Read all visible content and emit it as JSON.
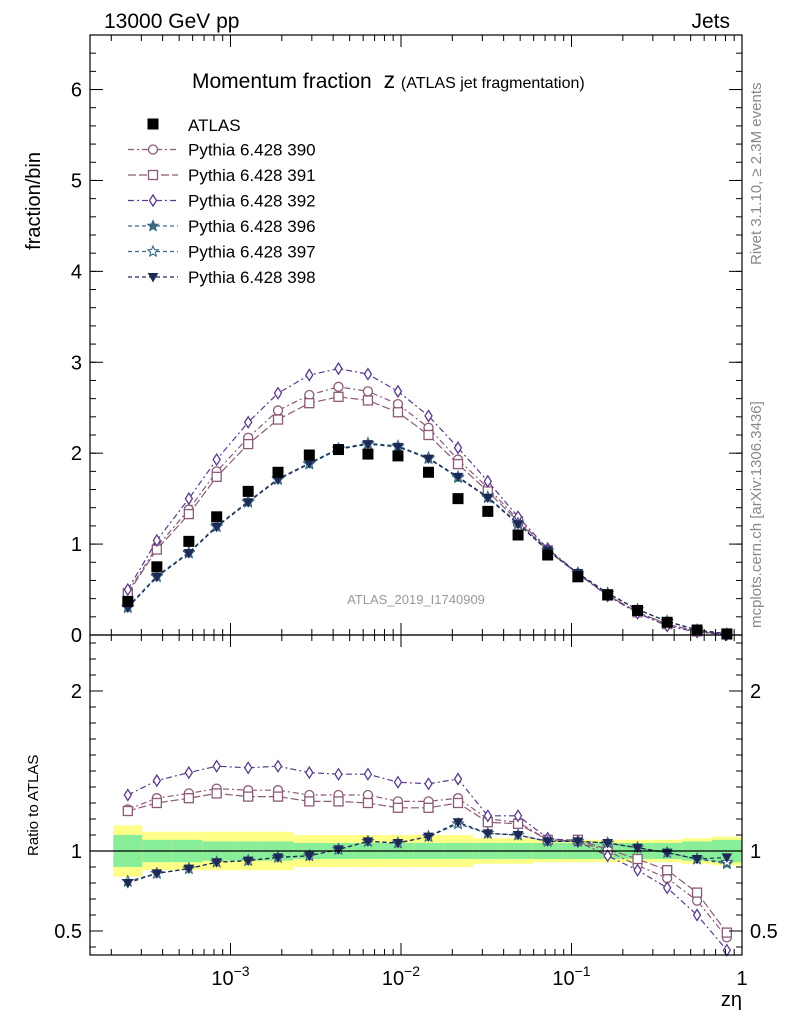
{
  "header": {
    "left": "13000 GeV pp",
    "right": "Jets"
  },
  "side_labels": {
    "rivet": "Rivet 3.1.10, ≥ 2.3M events",
    "mcplots": "mcplots.cern.ch [arXiv:1306.3436]"
  },
  "chart_data": {
    "type": "scatter",
    "title": "Momentum fraction",
    "title_z": "z",
    "title_sub": "(ATLAS jet fragmentation)",
    "analysis_label": "ATLAS_2019_I1740909",
    "xlabel": "zη",
    "xscale": "log",
    "xlim": [
      0.00015,
      1.0
    ],
    "xticks": [
      {
        "v": 0.001,
        "label": "10",
        "exp": "−3"
      },
      {
        "v": 0.01,
        "label": "10",
        "exp": "−2"
      },
      {
        "v": 0.1,
        "label": "10",
        "exp": "−1"
      },
      {
        "v": 1,
        "label": "1",
        "exp": ""
      }
    ],
    "main": {
      "ylabel": "fraction/bin",
      "ylim": [
        0,
        6.6
      ],
      "yticks": [
        {
          "v": 0,
          "label": "0"
        },
        {
          "v": 1,
          "label": "1"
        },
        {
          "v": 2,
          "label": "2"
        },
        {
          "v": 3,
          "label": "3"
        },
        {
          "v": 4,
          "label": "4"
        },
        {
          "v": 5,
          "label": "5"
        },
        {
          "v": 6,
          "label": "6"
        }
      ]
    },
    "ratio": {
      "ylabel": "Ratio to ATLAS",
      "ylim": [
        0.35,
        2.35
      ],
      "yticks": [
        {
          "v": 0.5,
          "label": "0.5"
        },
        {
          "v": 1,
          "label": "1"
        },
        {
          "v": 2,
          "label": "2"
        }
      ]
    },
    "legend_position": "top-left",
    "x": [
      0.00025,
      0.00037,
      0.00057,
      0.00083,
      0.00127,
      0.0019,
      0.0029,
      0.0043,
      0.0064,
      0.0096,
      0.0145,
      0.0216,
      0.0323,
      0.0486,
      0.0725,
      0.109,
      0.163,
      0.244,
      0.364,
      0.545,
      0.815
    ],
    "data": {
      "name": "ATLAS",
      "values": [
        0.37,
        0.75,
        1.03,
        1.3,
        1.58,
        1.79,
        1.98,
        2.04,
        1.99,
        1.97,
        1.79,
        1.5,
        1.36,
        1.1,
        0.88,
        0.64,
        0.44,
        0.27,
        0.14,
        0.055,
        0.012
      ]
    },
    "uncertainty_bands": {
      "stat_green": [
        0.1,
        0.07,
        0.07,
        0.06,
        0.06,
        0.06,
        0.05,
        0.05,
        0.05,
        0.05,
        0.05,
        0.05,
        0.05,
        0.05,
        0.05,
        0.05,
        0.05,
        0.05,
        0.05,
        0.06,
        0.07
      ],
      "total_yellow": [
        0.16,
        0.12,
        0.12,
        0.12,
        0.12,
        0.12,
        0.1,
        0.1,
        0.1,
        0.1,
        0.1,
        0.1,
        0.08,
        0.08,
        0.07,
        0.07,
        0.07,
        0.07,
        0.07,
        0.08,
        0.09
      ]
    },
    "series": [
      {
        "name": "Pythia 6.428 390",
        "color": "#8a5a78",
        "dash": "6,3,2,3",
        "marker": "circle-open",
        "values": [
          0.47,
          0.97,
          1.38,
          1.8,
          2.17,
          2.47,
          2.64,
          2.73,
          2.68,
          2.54,
          2.28,
          1.93,
          1.62,
          1.27,
          0.94,
          0.67,
          0.44,
          0.25,
          0.12,
          0.038,
          0.005
        ],
        "ratio": [
          1.26,
          1.33,
          1.36,
          1.39,
          1.38,
          1.38,
          1.35,
          1.35,
          1.35,
          1.31,
          1.31,
          1.33,
          1.2,
          1.18,
          1.07,
          1.06,
          1.0,
          0.91,
          0.83,
          0.69,
          0.46
        ]
      },
      {
        "name": "Pythia 6.428 391",
        "color": "#8a5a78",
        "dash": "8,3",
        "marker": "square-open",
        "values": [
          0.46,
          0.94,
          1.33,
          1.74,
          2.1,
          2.37,
          2.55,
          2.62,
          2.58,
          2.45,
          2.2,
          1.88,
          1.58,
          1.25,
          0.93,
          0.67,
          0.44,
          0.25,
          0.12,
          0.04,
          0.006
        ],
        "ratio": [
          1.25,
          1.3,
          1.33,
          1.36,
          1.34,
          1.34,
          1.31,
          1.31,
          1.3,
          1.27,
          1.27,
          1.3,
          1.18,
          1.17,
          1.07,
          1.07,
          1.01,
          0.95,
          0.88,
          0.74,
          0.49
        ]
      },
      {
        "name": "Pythia 6.428 392",
        "color": "#5a3a8a",
        "dash": "6,3,2,3",
        "marker": "diamond-open",
        "values": [
          0.5,
          1.04,
          1.5,
          1.93,
          2.34,
          2.66,
          2.86,
          2.93,
          2.87,
          2.68,
          2.41,
          2.06,
          1.69,
          1.3,
          0.95,
          0.68,
          0.43,
          0.24,
          0.1,
          0.032,
          0.004
        ],
        "ratio": [
          1.35,
          1.44,
          1.49,
          1.53,
          1.52,
          1.53,
          1.49,
          1.48,
          1.48,
          1.43,
          1.42,
          1.45,
          1.22,
          1.22,
          1.08,
          1.06,
          0.97,
          0.88,
          0.77,
          0.6,
          0.38
        ]
      },
      {
        "name": "Pythia 6.428 396",
        "color": "#3a6a82",
        "dash": "4,3",
        "marker": "star-filled",
        "values": [
          0.3,
          0.64,
          0.9,
          1.19,
          1.46,
          1.71,
          1.88,
          2.04,
          2.1,
          2.07,
          1.94,
          1.73,
          1.51,
          1.22,
          0.93,
          0.68,
          0.46,
          0.28,
          0.15,
          0.055,
          0.012
        ],
        "ratio": [
          0.81,
          0.86,
          0.89,
          0.93,
          0.94,
          0.96,
          0.97,
          1.01,
          1.06,
          1.05,
          1.09,
          1.17,
          1.11,
          1.1,
          1.06,
          1.06,
          1.05,
          1.02,
          0.99,
          0.95,
          0.92
        ]
      },
      {
        "name": "Pythia 6.428 397",
        "color": "#3a6a82",
        "dash": "4,3",
        "marker": "star-open",
        "values": [
          0.31,
          0.65,
          0.91,
          1.2,
          1.47,
          1.72,
          1.89,
          2.05,
          2.11,
          2.08,
          1.95,
          1.74,
          1.52,
          1.23,
          0.93,
          0.68,
          0.46,
          0.28,
          0.15,
          0.055,
          0.012
        ],
        "ratio": [
          0.81,
          0.86,
          0.89,
          0.93,
          0.94,
          0.96,
          0.97,
          1.01,
          1.06,
          1.05,
          1.09,
          1.17,
          1.11,
          1.1,
          1.06,
          1.06,
          1.05,
          1.02,
          0.99,
          0.95,
          0.93
        ]
      },
      {
        "name": "Pythia 6.428 398",
        "color": "#1e2a55",
        "dash": "4,3",
        "marker": "triangle-down-filled",
        "values": [
          0.3,
          0.64,
          0.9,
          1.19,
          1.46,
          1.71,
          1.89,
          2.05,
          2.1,
          2.07,
          1.94,
          1.74,
          1.51,
          1.22,
          0.93,
          0.68,
          0.46,
          0.28,
          0.15,
          0.056,
          0.012
        ],
        "ratio": [
          0.8,
          0.86,
          0.89,
          0.93,
          0.94,
          0.96,
          0.97,
          1.01,
          1.06,
          1.05,
          1.09,
          1.18,
          1.11,
          1.1,
          1.06,
          1.06,
          1.05,
          1.02,
          0.99,
          0.95,
          0.96
        ]
      }
    ]
  }
}
